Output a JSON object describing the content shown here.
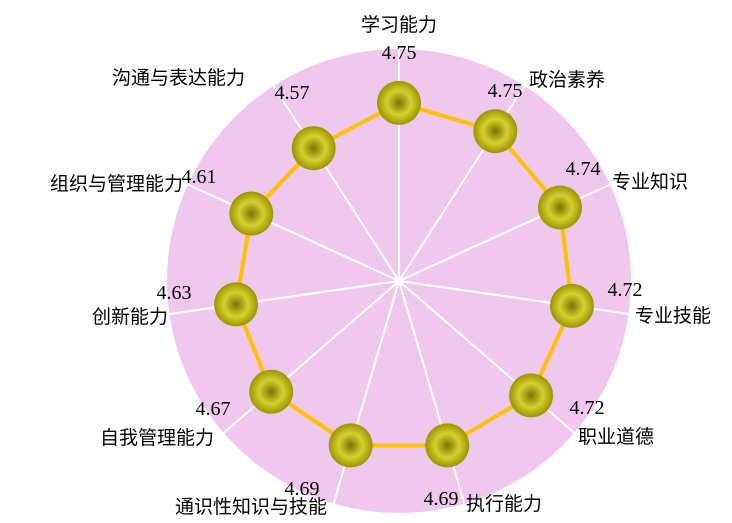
{
  "chart_data": {
    "type": "radar",
    "title": "",
    "categories": [
      "学习能力",
      "政治素养",
      "专业知识",
      "专业技能",
      "职业道德",
      "执行能力",
      "通识性知识与技能",
      "自我管理能力",
      "创新能力",
      "组织与管理能力",
      "沟通与表达能力"
    ],
    "values": [
      4.75,
      4.75,
      4.74,
      4.72,
      4.72,
      4.69,
      4.69,
      4.67,
      4.63,
      4.61,
      4.57
    ],
    "value_labels": [
      "4.75",
      "4.75",
      "4.74",
      "4.72",
      "4.72",
      "4.69",
      "4.69",
      "4.67",
      "4.63",
      "4.61",
      "4.57"
    ],
    "colors": {
      "background": "#f0c8ee",
      "spokes": "#ffffff",
      "line": "#ffc000",
      "marker_light": "#f4f08a",
      "marker_dark": "#9a9400"
    }
  }
}
